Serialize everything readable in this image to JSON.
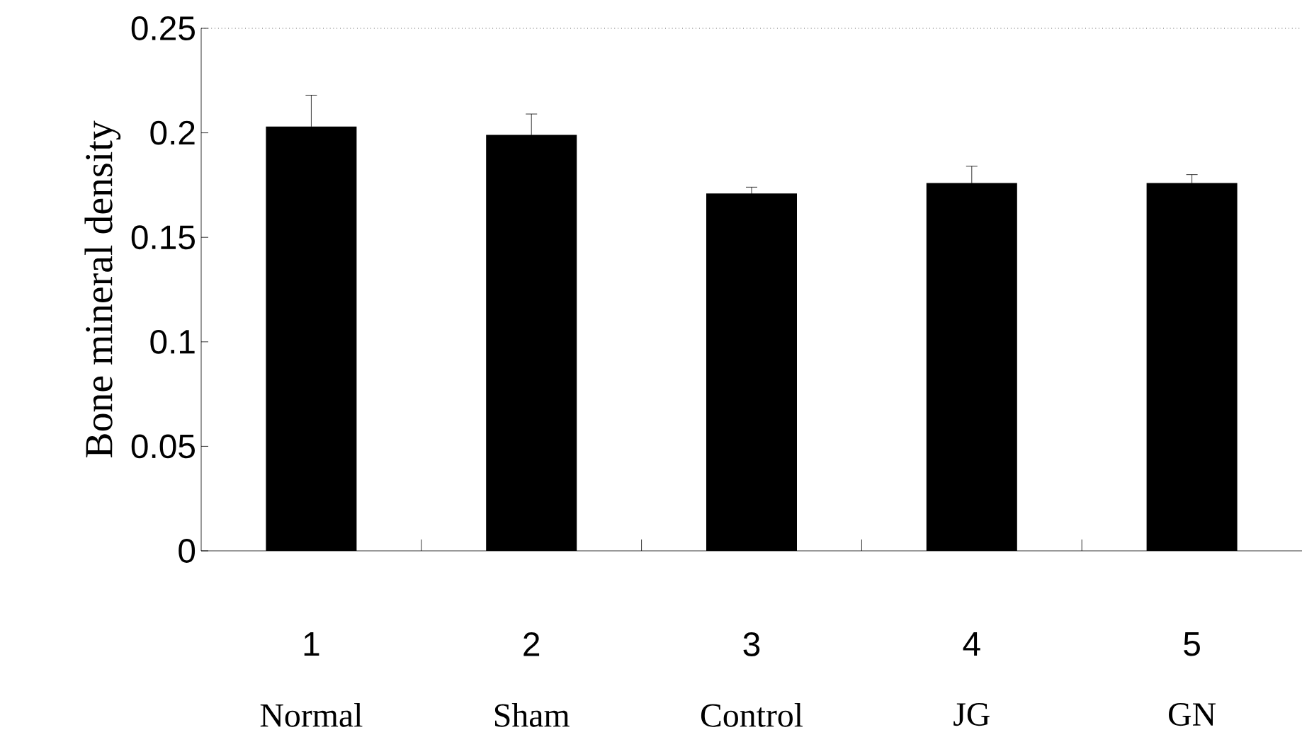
{
  "chart_data": {
    "type": "bar",
    "ylabel": "Bone mineral density",
    "categories": [
      "1",
      "2",
      "3",
      "4",
      "5"
    ],
    "values": [
      0.203,
      0.199,
      0.171,
      0.176,
      0.176
    ],
    "errors": [
      0.015,
      0.01,
      0.003,
      0.008,
      0.004
    ],
    "color": "#000000",
    "ylim": [
      0,
      0.25
    ],
    "yticks": [
      0,
      0.05,
      0.1,
      0.15,
      0.2,
      0.25
    ],
    "annotations": [
      "Normal",
      "Sham",
      "Control",
      "JG",
      "GN"
    ]
  }
}
